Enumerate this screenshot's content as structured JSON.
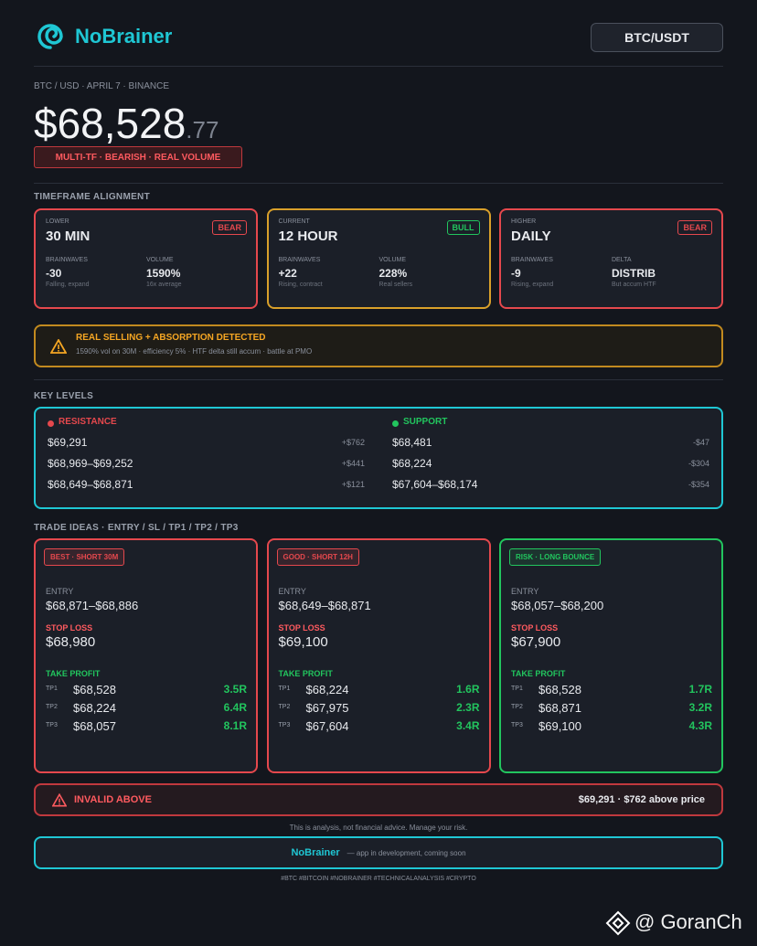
{
  "header": {
    "brand": "NoBrainer",
    "pair": "BTC/USDT"
  },
  "meta": "BTC / USD · APRIL 7 · BINANCE",
  "price": {
    "main": "$68,528",
    "cents": ".77"
  },
  "tag": "MULTI-TF · BEARISH · REAL VOLUME",
  "timeframe": {
    "title": "TIMEFRAME ALIGNMENT",
    "cards": [
      {
        "label": "LOWER",
        "name": "30 MIN",
        "badge": "BEAR",
        "color": "#e5484d",
        "stats": [
          {
            "label": "BRAINWAVES",
            "value": "-30",
            "note": "Falling, expand"
          },
          {
            "label": "VOLUME",
            "value": "1590%",
            "note": "16x average"
          }
        ]
      },
      {
        "label": "CURRENT",
        "name": "12 HOUR",
        "badge": "BULL",
        "color": "#d9a02a",
        "badge_color": "#22c55e",
        "stats": [
          {
            "label": "BRAINWAVES",
            "value": "+22",
            "note": "Rising, contract"
          },
          {
            "label": "VOLUME",
            "value": "228%",
            "note": "Real sellers"
          }
        ]
      },
      {
        "label": "HIGHER",
        "name": "DAILY",
        "badge": "BEAR",
        "color": "#e5484d",
        "stats": [
          {
            "label": "BRAINWAVES",
            "value": "-9",
            "note": "Rising, expand"
          },
          {
            "label": "DELTA",
            "value": "DISTRIB",
            "note": "But accum HTF"
          }
        ]
      }
    ]
  },
  "alert": {
    "title": "REAL SELLING + ABSORPTION DETECTED",
    "text": "1590% vol on 30M · efficiency 5% · HTF delta still accum · battle at PMO"
  },
  "levels": {
    "title": "KEY LEVELS",
    "resistance": {
      "title": "RESISTANCE",
      "color": "#e5484d",
      "rows": [
        [
          "$69,291",
          "+$762"
        ],
        [
          "$68,969–$69,252",
          "+$441"
        ],
        [
          "$68,649–$68,871",
          "+$121"
        ]
      ]
    },
    "support": {
      "title": "SUPPORT",
      "color": "#22c55e",
      "rows": [
        [
          "$68,481",
          "-$47"
        ],
        [
          "$68,224",
          "-$304"
        ],
        [
          "$67,604–$68,174",
          "-$354"
        ]
      ]
    }
  },
  "ideas": {
    "title": "TRADE IDEAS · ENTRY / SL / TP1 / TP2 / TP3",
    "cards": [
      {
        "badge": "BEST · SHORT 30M",
        "color": "#e5484d",
        "entry_label": "ENTRY",
        "entry": "$68,871–$68,886",
        "sl_label": "STOP LOSS",
        "sl": "$68,980",
        "tp_label": "TAKE PROFIT",
        "tps": [
          [
            "TP1",
            "$68,528",
            "3.5R"
          ],
          [
            "TP2",
            "$68,224",
            "6.4R"
          ],
          [
            "TP3",
            "$68,057",
            "8.1R"
          ]
        ]
      },
      {
        "badge": "GOOD · SHORT 12H",
        "color": "#e5484d",
        "entry_label": "ENTRY",
        "entry": "$68,649–$68,871",
        "sl_label": "STOP LOSS",
        "sl": "$69,100",
        "tp_label": "TAKE PROFIT",
        "tps": [
          [
            "TP1",
            "$68,224",
            "1.6R"
          ],
          [
            "TP2",
            "$67,975",
            "2.3R"
          ],
          [
            "TP3",
            "$67,604",
            "3.4R"
          ]
        ]
      },
      {
        "badge": "RISK · LONG BOUNCE",
        "color": "#22c55e",
        "entry_label": "ENTRY",
        "entry": "$68,057–$68,200",
        "sl_label": "STOP LOSS",
        "sl": "$67,900",
        "tp_label": "TAKE PROFIT",
        "tps": [
          [
            "TP1",
            "$68,528",
            "1.7R"
          ],
          [
            "TP2",
            "$68,871",
            "3.2R"
          ],
          [
            "TP3",
            "$69,100",
            "4.3R"
          ]
        ]
      }
    ]
  },
  "invalid": {
    "label": "INVALID ABOVE",
    "text": "$69,291 · $762 above price"
  },
  "disclaimer": "This is analysis, not financial advice. Manage your risk.",
  "footer": {
    "brand": "NoBrainer",
    "text": "— app in development, coming soon"
  },
  "hashtags": "#BTC #BITCOIN #NOBRAINER #TECHNICALANALYSIS #CRYPTO",
  "watermark": "@ GoranCh"
}
